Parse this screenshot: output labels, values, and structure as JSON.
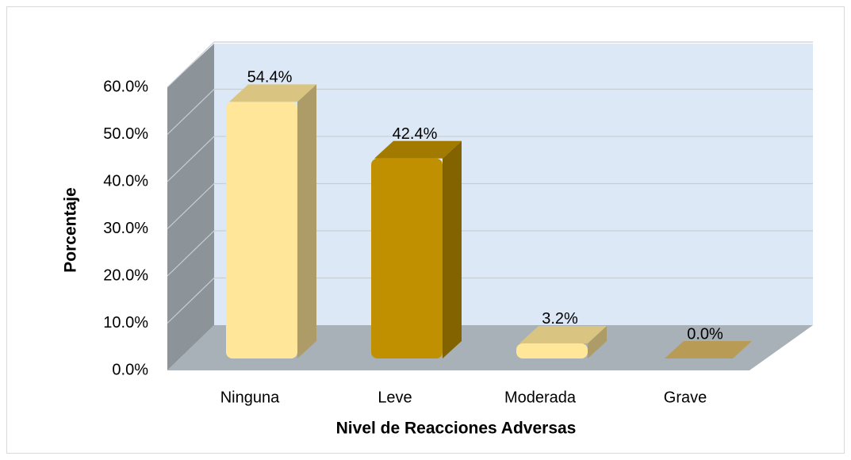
{
  "chart_data": {
    "type": "bar3d",
    "categories": [
      "Ninguna",
      "Leve",
      "Moderada",
      "Grave"
    ],
    "values": [
      54.4,
      42.4,
      3.2,
      0.0
    ],
    "value_labels": [
      "54.4%",
      "42.4%",
      "3.2%",
      "0.0%"
    ],
    "colors": [
      "#ffe699",
      "#c09000",
      "#ffe699",
      "#d9b864"
    ],
    "ylim": [
      0,
      60
    ],
    "yticks": [
      {
        "value": 0,
        "label": "0.0%"
      },
      {
        "value": 10,
        "label": "10.0%"
      },
      {
        "value": 20,
        "label": "20.0%"
      },
      {
        "value": 30,
        "label": "30.0%"
      },
      {
        "value": 40,
        "label": "40.0%"
      },
      {
        "value": 50,
        "label": "50.0%"
      },
      {
        "value": 60,
        "label": "60.0%"
      }
    ],
    "xlabel": "Nivel de Reacciones Adversas",
    "ylabel": "Porcentaje",
    "grid": true
  }
}
